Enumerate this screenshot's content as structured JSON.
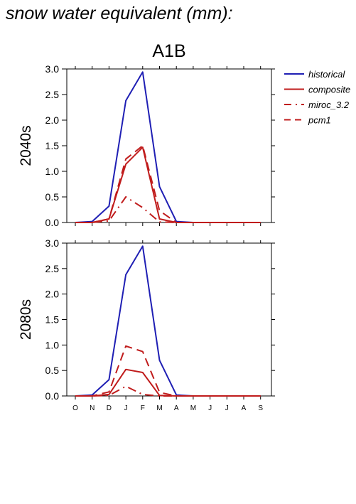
{
  "figure_title": "snow water equivalent (mm):",
  "scenario": "A1B",
  "colors": {
    "historical": "#1f1fb4",
    "future": "#c01c1c",
    "axis": "#000000"
  },
  "chart_data": [
    {
      "type": "line",
      "ylabel": "2040s",
      "xlabel": "",
      "ylim": [
        0,
        3.0
      ],
      "yticks": [
        "0.0",
        "0.5",
        "1.0",
        "1.5",
        "2.0",
        "2.5",
        "3.0"
      ],
      "grid": false,
      "legend_position": "outside-right",
      "categories": [
        "O",
        "N",
        "D",
        "J",
        "F",
        "M",
        "A",
        "M",
        "J",
        "J",
        "A",
        "S"
      ],
      "series": [
        {
          "name": "historical",
          "style": "solid",
          "color": "#1f1fb4",
          "values": [
            0.0,
            0.02,
            0.32,
            2.38,
            2.94,
            0.7,
            0.02,
            0.0,
            0.0,
            0.0,
            0.0,
            0.0
          ]
        },
        {
          "name": "composite",
          "style": "solid",
          "color": "#c01c1c",
          "values": [
            0.0,
            0.0,
            0.07,
            1.14,
            1.47,
            0.07,
            0.0,
            0.0,
            0.0,
            0.0,
            0.0,
            0.0
          ]
        },
        {
          "name": "miroc_3.2",
          "style": "dashdot",
          "color": "#c01c1c",
          "values": [
            0.0,
            0.0,
            0.03,
            0.5,
            0.29,
            0.01,
            0.0,
            0.0,
            0.0,
            0.0,
            0.0,
            0.0
          ]
        },
        {
          "name": "pcm1",
          "style": "dashed",
          "color": "#c01c1c",
          "values": [
            0.0,
            0.0,
            0.07,
            1.24,
            1.5,
            0.23,
            0.0,
            0.0,
            0.0,
            0.0,
            0.0,
            0.0
          ]
        }
      ]
    },
    {
      "type": "line",
      "ylabel": "2080s",
      "xlabel": "",
      "ylim": [
        0,
        3.0
      ],
      "yticks": [
        "0.0",
        "0.5",
        "1.0",
        "1.5",
        "2.0",
        "2.5",
        "3.0"
      ],
      "grid": false,
      "categories": [
        "O",
        "N",
        "D",
        "J",
        "F",
        "M",
        "A",
        "M",
        "J",
        "J",
        "A",
        "S"
      ],
      "series": [
        {
          "name": "historical",
          "style": "solid",
          "color": "#1f1fb4",
          "values": [
            0.0,
            0.02,
            0.32,
            2.38,
            2.94,
            0.7,
            0.02,
            0.0,
            0.0,
            0.0,
            0.0,
            0.0
          ]
        },
        {
          "name": "composite",
          "style": "solid",
          "color": "#c01c1c",
          "values": [
            0.0,
            0.0,
            0.03,
            0.52,
            0.46,
            0.01,
            0.0,
            0.0,
            0.0,
            0.0,
            0.0,
            0.0
          ]
        },
        {
          "name": "miroc_3.2",
          "style": "dashdot",
          "color": "#c01c1c",
          "values": [
            0.0,
            0.0,
            0.01,
            0.19,
            0.03,
            0.0,
            0.0,
            0.0,
            0.0,
            0.0,
            0.0,
            0.0
          ]
        },
        {
          "name": "pcm1",
          "style": "dashed",
          "color": "#c01c1c",
          "values": [
            0.0,
            0.0,
            0.08,
            0.98,
            0.87,
            0.07,
            0.0,
            0.0,
            0.0,
            0.0,
            0.0,
            0.0
          ]
        }
      ]
    }
  ]
}
